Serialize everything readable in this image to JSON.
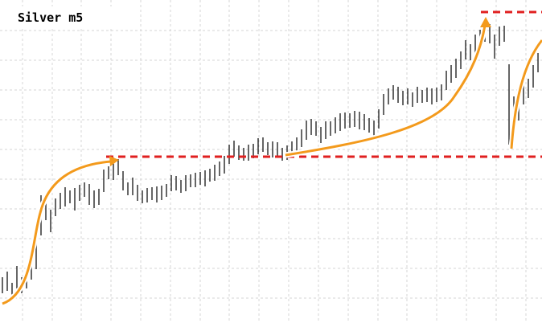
{
  "chart_data": {
    "type": "hilo",
    "title": "Silver m5",
    "color": "#000000",
    "grid": true,
    "xlim": [
      -0.5,
      111.83
    ],
    "ylim": [
      0,
      402
    ],
    "xticks": [
      4.17,
      10.33,
      16.33,
      22.5,
      28.67,
      34.83,
      41,
      47,
      53.17,
      59.33,
      65.5,
      71.67,
      77.83,
      83.83,
      90,
      96.17,
      102.33,
      108.5
    ],
    "yticks": [
      31,
      68,
      105,
      142,
      179,
      216,
      253,
      290,
      327,
      364
    ],
    "high": [
      57,
      64,
      50,
      71,
      57,
      61,
      80,
      107,
      159,
      152,
      141,
      155,
      162,
      169,
      165,
      168,
      172,
      175,
      173,
      165,
      167,
      191,
      195,
      206,
      204,
      189,
      175,
      181,
      172,
      165,
      168,
      169,
      170,
      171,
      173,
      184,
      183,
      178,
      184,
      185,
      187,
      188,
      190,
      192,
      197,
      201,
      208,
      222,
      227,
      221,
      218,
      222,
      223,
      230,
      231,
      225,
      226,
      225,
      218,
      221,
      226,
      231,
      241,
      252,
      254,
      251,
      244,
      251,
      251,
      256,
      261,
      262,
      261,
      264,
      263,
      260,
      255,
      252,
      266,
      285,
      292,
      296,
      294,
      289,
      292,
      287,
      294,
      290,
      293,
      292,
      293,
      297,
      314,
      321,
      329,
      338,
      352,
      347,
      359,
      365,
      374,
      372,
      359,
      369,
      370,
      322,
      282,
      292,
      302,
      304,
      321,
      336
    ],
    "low": [
      37,
      40,
      34,
      43,
      37,
      43,
      54,
      67,
      109,
      128,
      113,
      133,
      142,
      145,
      149,
      140,
      152,
      157,
      147,
      143,
      147,
      163,
      179,
      178,
      184,
      165,
      159,
      159,
      152,
      149,
      150,
      153,
      150,
      153,
      157,
      164,
      165,
      162,
      164,
      169,
      169,
      172,
      170,
      176,
      177,
      183,
      186,
      198,
      207,
      203,
      202,
      202,
      205,
      210,
      213,
      209,
      206,
      207,
      202,
      203,
      206,
      213,
      219,
      228,
      234,
      233,
      224,
      229,
      233,
      236,
      239,
      242,
      243,
      244,
      241,
      240,
      237,
      232,
      242,
      259,
      272,
      278,
      274,
      271,
      272,
      269,
      274,
      274,
      275,
      272,
      275,
      277,
      290,
      299,
      305,
      316,
      328,
      327,
      335,
      343,
      350,
      348,
      329,
      345,
      350,
      222,
      222,
      252,
      272,
      280,
      293,
      312
    ]
  }
}
